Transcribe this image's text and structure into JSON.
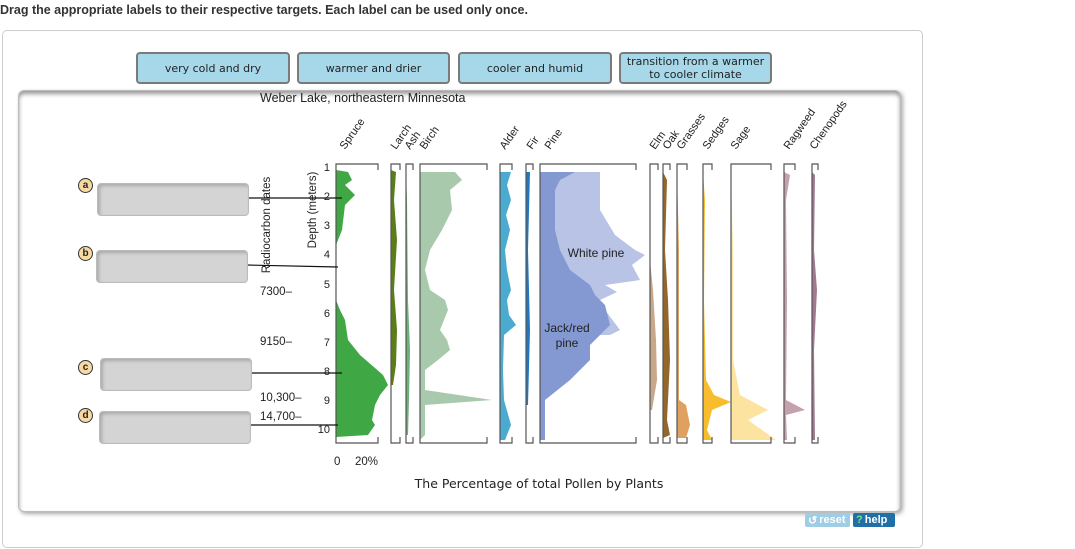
{
  "instruction": "Drag the appropriate labels to their respective targets. Each label can be used only once.",
  "labels": [
    "very cold and dry",
    "warmer and drier",
    "cooler and humid",
    "transition from a warmer to cooler climate"
  ],
  "targets": [
    "a",
    "b",
    "c",
    "d"
  ],
  "figure": {
    "title": "Weber Lake, northeastern Minnesota",
    "taxa": [
      "Spruce",
      "Larch",
      "Ash",
      "Birch",
      "Alder",
      "Fir",
      "Pine",
      "Elm",
      "Oak",
      "Grasses",
      "Sedges",
      "Sage",
      "Ragweed",
      "Chenopods"
    ],
    "depth_label": "Depth (meters)",
    "depth_ticks": [
      "1",
      "2",
      "3",
      "4",
      "5",
      "6",
      "7",
      "8",
      "9",
      "10"
    ],
    "radiocarbon_label": "Radiocarbon dates",
    "dates": [
      "7300–",
      "9150–",
      "10,300–",
      "14,700–"
    ],
    "scale_labels": [
      "0",
      "20%"
    ],
    "pine_labels": {
      "white": "White pine",
      "jack": "Jack/red",
      "jack2": "pine"
    },
    "caption": "The Percentage of total Pollen by Plants"
  },
  "buttons": {
    "reset": "reset",
    "help": "help"
  },
  "colors": {
    "label_bg": "#a6d8ea",
    "drop_bg": "#d4d4d4",
    "help_bg": "#1f6fa8",
    "reset_bg": "#9fcde6"
  }
}
